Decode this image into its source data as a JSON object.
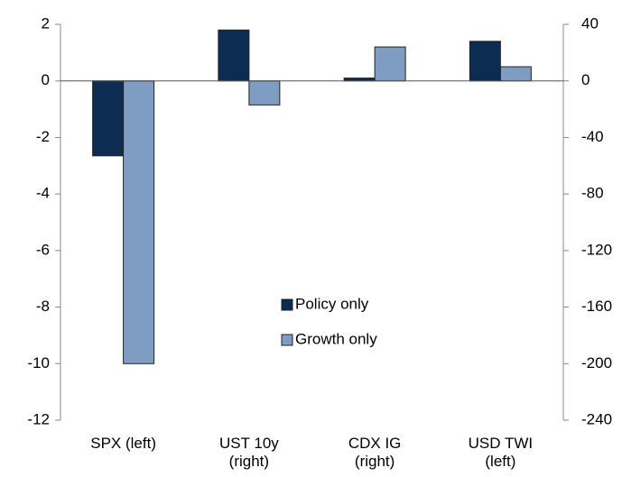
{
  "chart_data": {
    "type": "bar",
    "categories": [
      "SPX (left)",
      "UST 10y (right)",
      "CDX IG (right)",
      "USD TWI (left)"
    ],
    "category_axis": [
      "y",
      "y2",
      "y2",
      "y"
    ],
    "series": [
      {
        "name": "Policy only",
        "color": "#0c2c52",
        "values": [
          -2.65,
          36,
          2,
          1.4
        ]
      },
      {
        "name": "Growth only",
        "color": "#7f9cc2",
        "values": [
          -10,
          -17,
          24,
          0.5
        ]
      }
    ],
    "ylim": [
      -12,
      2
    ],
    "yticks": [
      -12,
      -10,
      -8,
      -6,
      -4,
      -2,
      0,
      2
    ],
    "y2lim": [
      -240,
      40
    ],
    "y2ticks": [
      -240,
      -200,
      -160,
      -120,
      -80,
      -40,
      0,
      40
    ],
    "legend": "center"
  }
}
